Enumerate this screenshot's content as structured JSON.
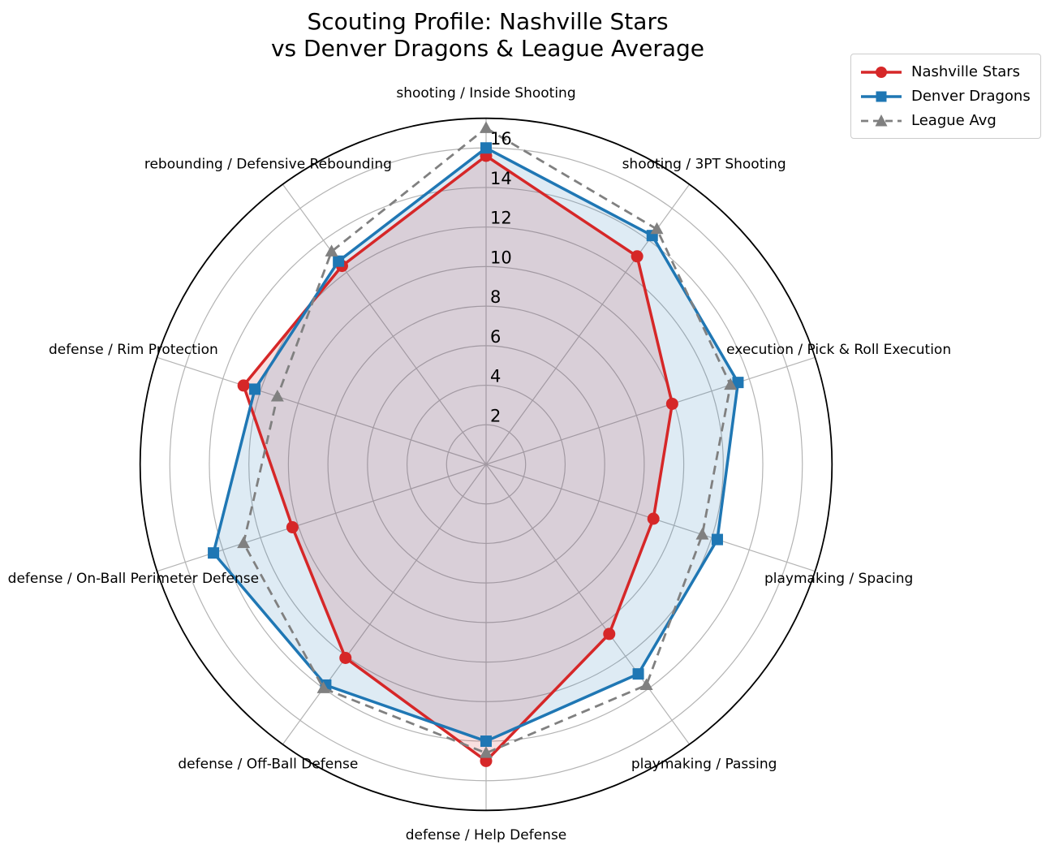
{
  "title": {
    "line1": "Scouting Profile: Nashville Stars",
    "line2": "vs Denver Dragons & League Average"
  },
  "legend": [
    {
      "label": "Nashville Stars",
      "color": "#d62728",
      "marker": "circle",
      "line": "solid"
    },
    {
      "label": "Denver Dragons",
      "color": "#1f77b4",
      "marker": "square",
      "line": "solid"
    },
    {
      "label": "League Avg",
      "color": "#808080",
      "marker": "triangle",
      "line": "dashed"
    }
  ],
  "chart_data": {
    "type": "radar",
    "title": "Scouting Profile: Nashville Stars vs Denver Dragons & League Average",
    "categories": [
      "shooting / Inside Shooting",
      "shooting / 3PT Shooting",
      "execution / Pick & Roll Execution",
      "playmaking / Spacing",
      "playmaking / Passing",
      "defense / Help Defense",
      "defense / Off-Ball Defense",
      "defense / On-Ball Perimeter Defense",
      "defense / Rim Protection",
      "rebounding / Defensive Rebounding"
    ],
    "series": [
      {
        "name": "Nashville Stars",
        "color": "#d62728",
        "marker": "circle",
        "line": "solid",
        "fill": true,
        "values": [
          15.6,
          13.0,
          9.9,
          8.9,
          10.6,
          15.0,
          12.1,
          10.3,
          12.9,
          12.4
        ]
      },
      {
        "name": "Denver Dragons",
        "color": "#1f77b4",
        "marker": "square",
        "line": "solid",
        "fill": true,
        "values": [
          16.0,
          14.3,
          13.4,
          12.3,
          13.1,
          14.0,
          13.8,
          14.5,
          12.3,
          12.7
        ]
      },
      {
        "name": "League Avg",
        "color": "#808080",
        "marker": "triangle",
        "line": "dashed",
        "fill": false,
        "values": [
          17.0,
          14.7,
          13.0,
          11.5,
          13.8,
          14.6,
          14.0,
          12.9,
          11.1,
          13.3
        ]
      }
    ],
    "r_ticks": [
      2,
      4,
      6,
      8,
      10,
      12,
      14,
      16
    ],
    "r_max": 17.5,
    "direction": "clockwise-from-top",
    "grid": true,
    "grid_color": "#b4b4b4",
    "fill_opacity": 0.15,
    "legend_position": "upper right"
  }
}
